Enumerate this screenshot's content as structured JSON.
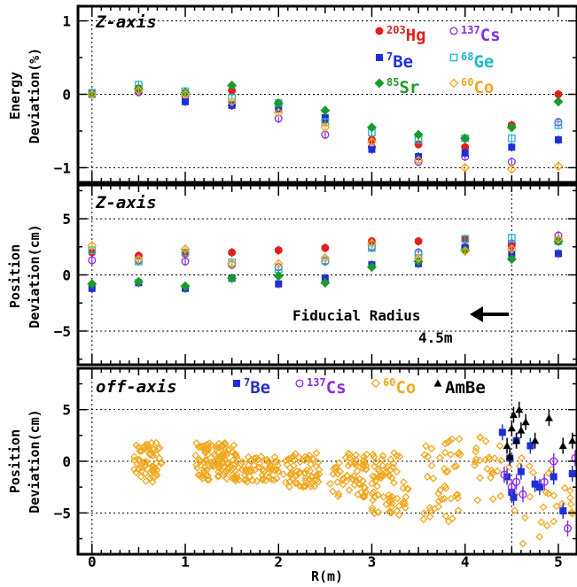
{
  "chart_data": [
    {
      "type": "scatter",
      "title": "Z-axis",
      "ylabel_line1": "Energy",
      "ylabel_line2": "Deviation(%)",
      "xlim": [
        -0.15,
        5.2
      ],
      "ylim": [
        -1.2,
        1.2
      ],
      "yticks": [
        "1",
        "0",
        "−1"
      ],
      "grid": true,
      "legend": [
        {
          "sup": "203",
          "label": "Hg",
          "color": "#e02020",
          "marker": "filled-circle"
        },
        {
          "sup": "137",
          "label": "Cs",
          "color": "#8a2be2",
          "marker": "open-circle"
        },
        {
          "sup": "7",
          "label": "Be",
          "color": "#1f2fd6",
          "marker": "filled-square"
        },
        {
          "sup": "68",
          "label": "Ge",
          "color": "#1fb8c8",
          "marker": "open-square"
        },
        {
          "sup": "85",
          "label": "Sr",
          "color": "#1a9a2a",
          "marker": "filled-diamond"
        },
        {
          "sup": "60",
          "label": "Co",
          "color": "#f0a820",
          "marker": "open-diamond"
        }
      ],
      "series": [
        {
          "name": "Hg",
          "x": [
            0,
            0.5,
            1,
            1.5,
            2,
            2.5,
            3,
            3.5,
            4,
            4.5,
            5
          ],
          "y": [
            0.02,
            0.08,
            0.02,
            0.05,
            -0.15,
            -0.35,
            -0.62,
            -0.68,
            -0.72,
            -0.42,
            0.0
          ]
        },
        {
          "name": "Cs",
          "x": [
            0,
            0.5,
            1,
            1.5,
            2,
            2.5,
            3,
            3.5,
            4,
            4.5,
            5
          ],
          "y": [
            0.0,
            0.03,
            -0.02,
            -0.15,
            -0.33,
            -0.55,
            -0.72,
            -0.92,
            -0.85,
            -0.92,
            -0.38
          ]
        },
        {
          "name": "Be",
          "x": [
            0,
            0.5,
            1,
            1.5,
            2,
            2.5,
            3,
            3.5,
            4,
            4.5,
            5
          ],
          "y": [
            0.0,
            0.05,
            -0.1,
            -0.15,
            -0.2,
            -0.32,
            -0.75,
            -0.85,
            -0.8,
            -0.72,
            -0.62
          ]
        },
        {
          "name": "Ge",
          "x": [
            0,
            0.5,
            1,
            1.5,
            2,
            2.5,
            3,
            3.5,
            4,
            4.5,
            5
          ],
          "y": [
            0.02,
            0.13,
            0.04,
            -0.05,
            -0.12,
            -0.38,
            -0.52,
            -0.62,
            -0.6,
            -0.6,
            -0.42
          ]
        },
        {
          "name": "Sr",
          "x": [
            0,
            0.5,
            1,
            1.5,
            2,
            2.5,
            3,
            3.5,
            4,
            4.5,
            5
          ],
          "y": [
            0.0,
            0.07,
            0.02,
            0.12,
            -0.12,
            -0.22,
            -0.45,
            -0.55,
            -0.6,
            -0.45,
            -0.1
          ]
        },
        {
          "name": "Co",
          "x": [
            0,
            0.5,
            1,
            1.5,
            2,
            2.5,
            3,
            3.5,
            4,
            4.5,
            5
          ],
          "y": [
            0.0,
            0.05,
            0.0,
            -0.1,
            -0.25,
            -0.45,
            -0.65,
            -0.9,
            -1.0,
            -1.02,
            -0.98
          ]
        }
      ]
    },
    {
      "type": "scatter",
      "title": "Z-axis",
      "ylabel_line1": "Position",
      "ylabel_line2": "Deviation(cm)",
      "xlim": [
        -0.15,
        5.2
      ],
      "ylim": [
        -8,
        8
      ],
      "yticks": [
        "5",
        "0",
        "−5"
      ],
      "grid": true,
      "annotation_line1": "Fiducial Radius",
      "annotation_line2": "4.5m",
      "fiducial_radius": 4.5,
      "series": [
        {
          "name": "Hg",
          "x": [
            0,
            0.5,
            1,
            1.5,
            2,
            2.5,
            3,
            3.5,
            4,
            4.5,
            5
          ],
          "y": [
            2.0,
            1.7,
            1.9,
            2.0,
            2.2,
            2.4,
            3.0,
            3.0,
            3.2,
            2.6,
            3.0
          ]
        },
        {
          "name": "Cs",
          "x": [
            0,
            0.5,
            1,
            1.5,
            2,
            2.5,
            3,
            3.5,
            4,
            4.5,
            5
          ],
          "y": [
            1.3,
            1.3,
            1.2,
            0.9,
            0.7,
            1.2,
            2.5,
            2.0,
            2.5,
            2.8,
            3.5
          ]
        },
        {
          "name": "Be",
          "x": [
            0,
            0.5,
            1,
            1.5,
            2,
            2.5,
            3,
            3.5,
            4,
            4.5,
            5
          ],
          "y": [
            -1.2,
            -0.7,
            -1.2,
            -0.3,
            -0.8,
            -0.3,
            0.9,
            1.0,
            2.4,
            1.9,
            1.9
          ]
        },
        {
          "name": "Ge",
          "x": [
            0,
            0.5,
            1,
            1.5,
            2,
            2.5,
            3,
            3.5,
            4,
            4.5,
            5
          ],
          "y": [
            2.2,
            1.2,
            2.0,
            1.1,
            0.5,
            1.3,
            2.4,
            1.8,
            3.2,
            3.3,
            3.0
          ]
        },
        {
          "name": "Sr",
          "x": [
            0,
            0.5,
            1,
            1.5,
            2,
            2.5,
            3,
            3.5,
            4,
            4.5,
            5
          ],
          "y": [
            -0.8,
            -0.6,
            -1.0,
            -0.3,
            -0.1,
            -0.7,
            0.7,
            1.2,
            2.2,
            1.4,
            3.0
          ]
        },
        {
          "name": "Co",
          "x": [
            0,
            0.5,
            1,
            1.5,
            2,
            2.5,
            3,
            3.5,
            4,
            4.5,
            5
          ],
          "y": [
            2.6,
            1.4,
            2.3,
            1.0,
            1.0,
            1.5,
            2.8,
            1.5,
            2.1,
            2.3,
            3.2
          ]
        }
      ]
    },
    {
      "type": "scatter",
      "title": "off-axis",
      "ylabel_line1": "Position",
      "ylabel_line2": "Deviation(cm)",
      "xlabel": "R(m)",
      "xlim": [
        -0.15,
        5.2
      ],
      "ylim": [
        -9,
        9
      ],
      "xticks": [
        "0",
        "1",
        "2",
        "3",
        "4",
        "5"
      ],
      "yticks": [
        "5",
        "0",
        "−5"
      ],
      "grid": true,
      "legend": [
        {
          "sup": "7",
          "label": "Be",
          "color": "#1f2fd6",
          "marker": "filled-square"
        },
        {
          "sup": "137",
          "label": "Cs",
          "color": "#8a2be2",
          "marker": "open-circle"
        },
        {
          "sup": "60",
          "label": "Co",
          "color": "#f0a820",
          "marker": "open-diamond"
        },
        {
          "sup": "",
          "label": "AmBe",
          "color": "#000000",
          "marker": "filled-triangle"
        }
      ],
      "series": [
        {
          "name": "Co",
          "clusters": [
            {
              "x": [
                0.45,
                0.75
              ],
              "y": [
                -2.0,
                1.8
              ],
              "n": 60
            },
            {
              "x": [
                1.1,
                1.55
              ],
              "y": [
                -1.8,
                1.8
              ],
              "n": 95
            },
            {
              "x": [
                1.5,
                2.0
              ],
              "y": [
                -2.0,
                0.5
              ],
              "n": 70
            },
            {
              "x": [
                2.05,
                2.45
              ],
              "y": [
                -2.5,
                0.8
              ],
              "n": 65
            },
            {
              "x": [
                2.55,
                2.95
              ],
              "y": [
                -3.5,
                0.8
              ],
              "n": 60
            },
            {
              "x": [
                3.0,
                3.4
              ],
              "y": [
                -5.2,
                1.2
              ],
              "n": 70
            },
            {
              "x": [
                3.55,
                3.95
              ],
              "y": [
                -6.0,
                2.5
              ],
              "n": 45
            },
            {
              "x": [
                4.1,
                4.4
              ],
              "y": [
                -4.0,
                2.5
              ],
              "n": 25
            },
            {
              "x": [
                4.45,
                5.2
              ],
              "y": [
                -8.0,
                0.8
              ],
              "n": 30
            }
          ]
        },
        {
          "name": "Be",
          "x": [
            4.4,
            4.45,
            4.5,
            4.55,
            4.6,
            4.7,
            4.75,
            4.8,
            4.95,
            5.05,
            5.15,
            4.48,
            4.52
          ],
          "y": [
            2.8,
            -1.5,
            -3.0,
            2.0,
            -1.0,
            1.5,
            -2.2,
            -2.5,
            -1.5,
            -4.8,
            -1.2,
            0.3,
            -3.5
          ]
        },
        {
          "name": "Cs",
          "x": [
            4.42,
            4.5,
            4.55,
            4.62,
            4.85,
            4.95,
            5.1,
            5.18
          ],
          "y": [
            -1.3,
            -2.5,
            -2.0,
            -3.2,
            -2.0,
            0.0,
            -6.5,
            0.3
          ]
        },
        {
          "name": "AmBe",
          "x": [
            4.45,
            4.5,
            4.52,
            4.55,
            4.58,
            4.6,
            4.65,
            4.75,
            4.9,
            5.05,
            5.15,
            4.48
          ],
          "y": [
            1.5,
            3.2,
            4.5,
            2.0,
            5.0,
            3.0,
            3.8,
            2.0,
            4.2,
            1.5,
            2.0,
            0.5
          ]
        }
      ]
    }
  ]
}
